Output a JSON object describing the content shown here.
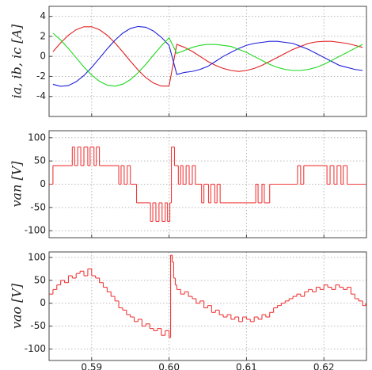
{
  "chart_data": [
    {
      "type": "line",
      "ylabel": "ia, ib, ic [A]",
      "xlim": [
        0.5845,
        0.6255
      ],
      "xticks": [
        0.59,
        0.6,
        0.61,
        0.62
      ],
      "ylim": [
        -6,
        5
      ],
      "yticks": [
        -4,
        -2,
        0,
        2,
        4
      ],
      "grid": true,
      "x": [
        0.585,
        0.586,
        0.587,
        0.588,
        0.589,
        0.59,
        0.591,
        0.592,
        0.593,
        0.594,
        0.595,
        0.596,
        0.597,
        0.598,
        0.599,
        0.6,
        0.601,
        0.602,
        0.603,
        0.604,
        0.605,
        0.606,
        0.607,
        0.608,
        0.609,
        0.61,
        0.611,
        0.612,
        0.613,
        0.614,
        0.615,
        0.616,
        0.617,
        0.618,
        0.619,
        0.62,
        0.621,
        0.622,
        0.623,
        0.624,
        0.625
      ],
      "series": [
        {
          "name": "ia",
          "color": "#e02020",
          "values": [
            0.47,
            1.36,
            2.12,
            2.67,
            2.96,
            2.96,
            2.67,
            2.12,
            1.36,
            0.47,
            -0.47,
            -1.36,
            -2.12,
            -2.67,
            -2.96,
            -2.96,
            1.2,
            0.9,
            0.5,
            0.0,
            -0.5,
            -0.9,
            -1.2,
            -1.4,
            -1.5,
            -1.4,
            -1.2,
            -0.9,
            -0.5,
            -0.1,
            0.3,
            0.7,
            1.0,
            1.3,
            1.45,
            1.5,
            1.5,
            1.4,
            1.3,
            1.1,
            0.9
          ]
        },
        {
          "name": "ib",
          "color": "#2020d8",
          "values": [
            -2.79,
            -2.99,
            -2.91,
            -2.53,
            -1.91,
            -1.1,
            -0.19,
            0.75,
            1.61,
            2.31,
            2.79,
            2.99,
            2.91,
            2.53,
            1.91,
            1.1,
            -1.8,
            -1.6,
            -1.5,
            -1.3,
            -1.0,
            -0.5,
            0.0,
            0.4,
            0.8,
            1.1,
            1.3,
            1.4,
            1.5,
            1.5,
            1.4,
            1.3,
            1.0,
            0.7,
            0.3,
            -0.1,
            -0.5,
            -0.9,
            -1.1,
            -1.3,
            -1.4
          ]
        },
        {
          "name": "ic",
          "color": "#20d820",
          "values": [
            2.32,
            1.63,
            0.79,
            -0.14,
            -1.05,
            -1.86,
            -2.48,
            -2.87,
            -2.97,
            -2.78,
            -2.32,
            -1.63,
            -0.79,
            0.14,
            1.05,
            1.86,
            0.3,
            0.6,
            0.9,
            1.1,
            1.2,
            1.2,
            1.1,
            1.0,
            0.7,
            0.4,
            0.0,
            -0.4,
            -0.8,
            -1.1,
            -1.3,
            -1.4,
            -1.4,
            -1.3,
            -1.1,
            -0.8,
            -0.4,
            0.0,
            0.4,
            0.8,
            1.2
          ]
        }
      ]
    },
    {
      "type": "step",
      "ylabel": "van [V]",
      "xlim": [
        0.5845,
        0.6255
      ],
      "xticks": [
        0.59,
        0.6,
        0.61,
        0.62
      ],
      "ylim": [
        -115,
        115
      ],
      "yticks": [
        -100,
        -50,
        0,
        50,
        100
      ],
      "grid": true,
      "x": [
        0.5845,
        0.585,
        0.5875,
        0.5878,
        0.5882,
        0.5886,
        0.589,
        0.5895,
        0.5898,
        0.5903,
        0.5906,
        0.591,
        0.5935,
        0.5938,
        0.5942,
        0.5946,
        0.595,
        0.5958,
        0.5976,
        0.5979,
        0.5983,
        0.5987,
        0.5991,
        0.5995,
        0.5998,
        0.6001,
        0.6003,
        0.6007,
        0.6012,
        0.6015,
        0.6018,
        0.6022,
        0.6026,
        0.603,
        0.6034,
        0.6042,
        0.6045,
        0.6051,
        0.6054,
        0.6059,
        0.6062,
        0.6066,
        0.6112,
        0.6115,
        0.612,
        0.6123,
        0.613,
        0.6166,
        0.617,
        0.6174,
        0.6204,
        0.6208,
        0.6213,
        0.6217,
        0.6222,
        0.6225,
        0.623,
        0.6254
      ],
      "series": [
        {
          "name": "van",
          "color": "#f03a3a",
          "values": [
            0,
            40,
            80,
            40,
            80,
            40,
            80,
            40,
            80,
            40,
            80,
            40,
            0,
            40,
            0,
            40,
            0,
            -40,
            -80,
            -40,
            -80,
            -40,
            -80,
            -40,
            -80,
            -40,
            80,
            40,
            0,
            40,
            0,
            40,
            0,
            40,
            0,
            -40,
            0,
            -40,
            0,
            -40,
            0,
            -40,
            0,
            -40,
            0,
            -40,
            0,
            40,
            0,
            40,
            0,
            40,
            0,
            40,
            0,
            40,
            0,
            0
          ]
        }
      ]
    },
    {
      "type": "step",
      "ylabel": "vao [V]",
      "xlim": [
        0.5845,
        0.6255
      ],
      "xticks": [
        {
          "value": 0.59,
          "label": "0.59"
        },
        {
          "value": 0.6,
          "label": "0.60"
        },
        {
          "value": 0.61,
          "label": "0.61"
        },
        {
          "value": 0.62,
          "label": "0.62"
        }
      ],
      "ylim": [
        -125,
        112
      ],
      "yticks": [
        -100,
        -50,
        0,
        50,
        100
      ],
      "grid": true,
      "x": [
        0.5845,
        0.585,
        0.5855,
        0.586,
        0.5865,
        0.587,
        0.5875,
        0.588,
        0.5885,
        0.589,
        0.5895,
        0.59,
        0.5905,
        0.591,
        0.5915,
        0.592,
        0.5925,
        0.593,
        0.5935,
        0.594,
        0.5945,
        0.595,
        0.5955,
        0.596,
        0.5965,
        0.597,
        0.5975,
        0.598,
        0.5985,
        0.599,
        0.5995,
        0.6,
        0.6002,
        0.6004,
        0.6006,
        0.6008,
        0.601,
        0.6015,
        0.602,
        0.6025,
        0.603,
        0.6035,
        0.604,
        0.6045,
        0.605,
        0.6055,
        0.606,
        0.6065,
        0.607,
        0.6075,
        0.608,
        0.6085,
        0.609,
        0.6095,
        0.61,
        0.6105,
        0.611,
        0.6115,
        0.612,
        0.6125,
        0.613,
        0.6135,
        0.614,
        0.6145,
        0.615,
        0.6155,
        0.616,
        0.6165,
        0.617,
        0.6175,
        0.618,
        0.6185,
        0.619,
        0.6195,
        0.62,
        0.6205,
        0.621,
        0.6215,
        0.622,
        0.6225,
        0.623,
        0.6235,
        0.624,
        0.6245,
        0.625,
        0.6254
      ],
      "series": [
        {
          "name": "vao",
          "color": "#f03a3a",
          "values": [
            20,
            30,
            40,
            50,
            45,
            60,
            55,
            65,
            70,
            60,
            75,
            60,
            55,
            45,
            35,
            25,
            15,
            5,
            -10,
            -15,
            -25,
            -30,
            -40,
            -35,
            -50,
            -45,
            -55,
            -60,
            -55,
            -70,
            -60,
            -75,
            105,
            90,
            55,
            40,
            30,
            20,
            25,
            15,
            10,
            0,
            5,
            -10,
            -5,
            -20,
            -15,
            -25,
            -30,
            -25,
            -35,
            -30,
            -40,
            -30,
            -35,
            -40,
            -30,
            -35,
            -25,
            -30,
            -20,
            -10,
            -5,
            0,
            5,
            10,
            15,
            20,
            15,
            25,
            30,
            25,
            35,
            30,
            40,
            35,
            30,
            40,
            35,
            30,
            35,
            20,
            10,
            5,
            -5,
            0
          ]
        }
      ]
    }
  ]
}
